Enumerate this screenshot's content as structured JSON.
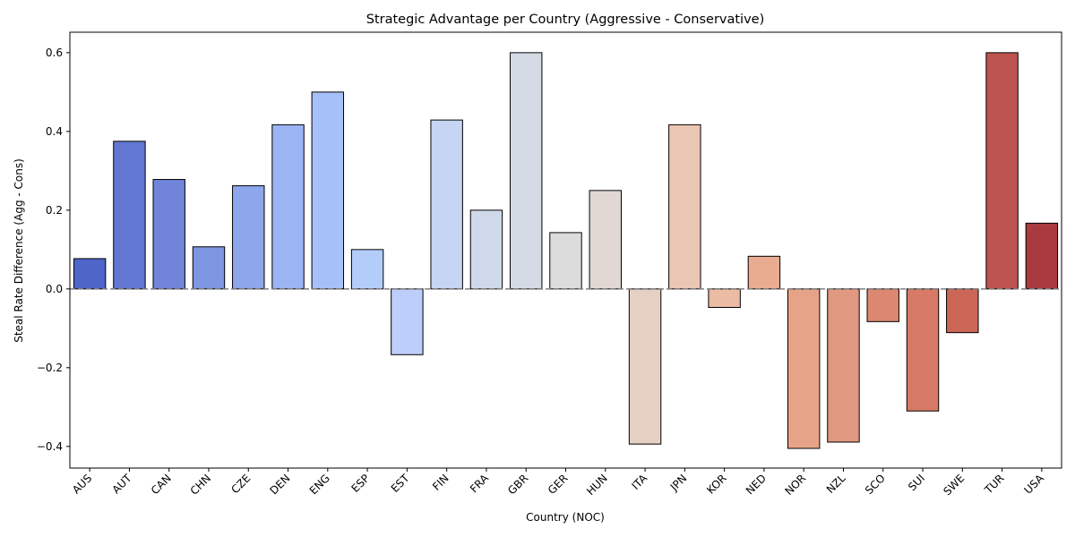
{
  "chart_data": {
    "type": "bar",
    "title": "Strategic Advantage per Country (Aggressive - Conservative)",
    "xlabel": "Country (NOC)",
    "ylabel": "Steal Rate Difference (Agg - Cons)",
    "ylim": [
      -0.455,
      0.652
    ],
    "yticks": [
      -0.4,
      -0.2,
      0.0,
      0.2,
      0.4,
      0.6
    ],
    "ytick_labels": [
      "−0.4",
      "−0.2",
      "0.0",
      "0.2",
      "0.4",
      "0.6"
    ],
    "categories": [
      "AUS",
      "AUT",
      "CAN",
      "CHN",
      "CZE",
      "DEN",
      "ENG",
      "ESP",
      "EST",
      "FIN",
      "FRA",
      "GBR",
      "GER",
      "HUN",
      "ITA",
      "JPN",
      "KOR",
      "NED",
      "NOR",
      "NZL",
      "SCO",
      "SUI",
      "SWE",
      "TUR",
      "USA"
    ],
    "values": [
      0.077,
      0.375,
      0.278,
      0.107,
      0.262,
      0.417,
      0.5,
      0.1,
      -0.167,
      0.429,
      0.2,
      0.6,
      0.143,
      0.25,
      -0.394,
      0.417,
      -0.047,
      0.083,
      -0.405,
      -0.389,
      -0.083,
      -0.31,
      -0.111,
      0.6,
      0.167
    ],
    "colors": [
      "#5065c8",
      "#6177d1",
      "#7085da",
      "#7f96e3",
      "#8ea7ec",
      "#9bb4f3",
      "#a6c1f9",
      "#b3cdfb",
      "#becefa",
      "#c5d5f3",
      "#cfd9ea",
      "#d5dbe5",
      "#dcdcdc",
      "#e1d8d3",
      "#e6d0c4",
      "#eac6b4",
      "#ecbba4",
      "#e9ac91",
      "#e7a388",
      "#e09880",
      "#dc8871",
      "#d77a65",
      "#cc6656",
      "#bd5350",
      "#a93a40"
    ],
    "grid": false,
    "legend": "none",
    "baseline": "dashed"
  }
}
